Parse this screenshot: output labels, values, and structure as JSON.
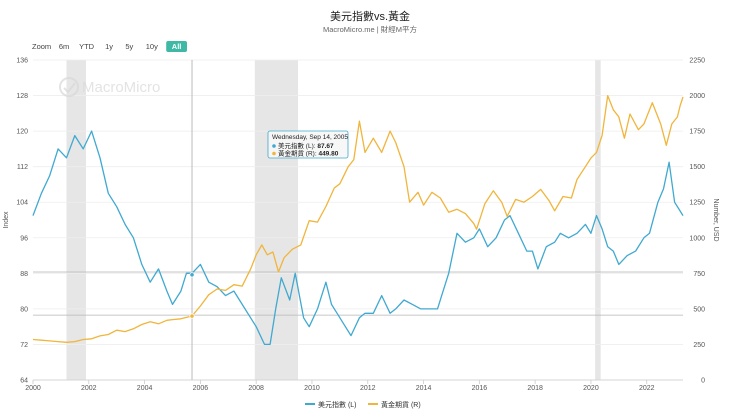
{
  "chart_data": {
    "type": "line",
    "title": "美元指數vs.黃金",
    "subtitle": "MacroMicro.me | 財經M平方",
    "watermark": "MacroMicro",
    "zoom": {
      "label": "Zoom",
      "options": [
        "6m",
        "YTD",
        "1y",
        "5y",
        "10y",
        "All"
      ],
      "selected": "All"
    },
    "x_ticks": [
      "2000",
      "2002",
      "2004",
      "2006",
      "2008",
      "2010",
      "2012",
      "2014",
      "2016",
      "2018",
      "2020",
      "2022"
    ],
    "xlim": [
      2000.0,
      2023.3
    ],
    "left_axis": {
      "label": "Index",
      "ylim": [
        64,
        136
      ],
      "ticks": [
        64,
        72,
        80,
        88,
        96,
        104,
        112,
        120,
        128,
        136
      ]
    },
    "right_axis": {
      "label": "Number, USD",
      "ylim": [
        0,
        2250
      ],
      "ticks": [
        0,
        250,
        500,
        750,
        1000,
        1250,
        1500,
        1750,
        2000,
        2250
      ]
    },
    "shaded_periods": [
      [
        2001.2,
        2001.9
      ],
      [
        2007.95,
        2009.5
      ],
      [
        2020.15,
        2020.35
      ]
    ],
    "vertical_marker": 2005.7,
    "reference_lines": [
      {
        "axis": "left",
        "value": 88.3
      },
      {
        "axis": "left",
        "value": 78.6
      }
    ],
    "series": [
      {
        "name": "美元指數",
        "axis": "left",
        "legend": "美元指數 (L)",
        "color": "#40a9d0",
        "points": [
          [
            2000.0,
            101
          ],
          [
            2000.3,
            106
          ],
          [
            2000.6,
            110
          ],
          [
            2000.9,
            116
          ],
          [
            2001.2,
            114
          ],
          [
            2001.5,
            119
          ],
          [
            2001.8,
            116
          ],
          [
            2002.1,
            120
          ],
          [
            2002.4,
            114
          ],
          [
            2002.7,
            106
          ],
          [
            2003.0,
            103
          ],
          [
            2003.3,
            99
          ],
          [
            2003.6,
            96
          ],
          [
            2003.9,
            90
          ],
          [
            2004.2,
            86
          ],
          [
            2004.5,
            89
          ],
          [
            2004.8,
            84
          ],
          [
            2005.0,
            81
          ],
          [
            2005.3,
            84
          ],
          [
            2005.5,
            88
          ],
          [
            2005.7,
            88
          ],
          [
            2006.0,
            90
          ],
          [
            2006.3,
            86
          ],
          [
            2006.6,
            85
          ],
          [
            2006.9,
            83
          ],
          [
            2007.2,
            84
          ],
          [
            2007.5,
            81
          ],
          [
            2007.8,
            78
          ],
          [
            2008.0,
            76
          ],
          [
            2008.3,
            72
          ],
          [
            2008.5,
            72
          ],
          [
            2008.7,
            80
          ],
          [
            2008.9,
            87
          ],
          [
            2009.2,
            82
          ],
          [
            2009.4,
            88
          ],
          [
            2009.7,
            78
          ],
          [
            2009.9,
            76
          ],
          [
            2010.2,
            80
          ],
          [
            2010.5,
            86
          ],
          [
            2010.7,
            81
          ],
          [
            2010.9,
            79
          ],
          [
            2011.2,
            76
          ],
          [
            2011.4,
            74
          ],
          [
            2011.7,
            78
          ],
          [
            2011.9,
            79
          ],
          [
            2012.2,
            79
          ],
          [
            2012.5,
            83
          ],
          [
            2012.8,
            79
          ],
          [
            2013.0,
            80
          ],
          [
            2013.3,
            82
          ],
          [
            2013.6,
            81
          ],
          [
            2013.9,
            80
          ],
          [
            2014.2,
            80
          ],
          [
            2014.5,
            80
          ],
          [
            2014.7,
            84
          ],
          [
            2014.9,
            88
          ],
          [
            2015.2,
            97
          ],
          [
            2015.5,
            95
          ],
          [
            2015.8,
            96
          ],
          [
            2016.0,
            98
          ],
          [
            2016.3,
            94
          ],
          [
            2016.6,
            96
          ],
          [
            2016.9,
            100
          ],
          [
            2017.1,
            101
          ],
          [
            2017.4,
            97
          ],
          [
            2017.7,
            93
          ],
          [
            2017.9,
            93
          ],
          [
            2018.1,
            89
          ],
          [
            2018.4,
            94
          ],
          [
            2018.7,
            95
          ],
          [
            2018.9,
            97
          ],
          [
            2019.2,
            96
          ],
          [
            2019.5,
            97
          ],
          [
            2019.8,
            99
          ],
          [
            2020.0,
            97
          ],
          [
            2020.2,
            101
          ],
          [
            2020.4,
            98
          ],
          [
            2020.6,
            94
          ],
          [
            2020.8,
            93
          ],
          [
            2021.0,
            90
          ],
          [
            2021.3,
            92
          ],
          [
            2021.6,
            93
          ],
          [
            2021.9,
            96
          ],
          [
            2022.1,
            97
          ],
          [
            2022.4,
            104
          ],
          [
            2022.6,
            107
          ],
          [
            2022.8,
            113
          ],
          [
            2023.0,
            104
          ],
          [
            2023.2,
            102
          ],
          [
            2023.3,
            101
          ]
        ]
      },
      {
        "name": "黃金期貨",
        "axis": "right",
        "legend": "黃金期貨 (R)",
        "color": "#f0b53c",
        "points": [
          [
            2000.0,
            285
          ],
          [
            2000.3,
            280
          ],
          [
            2000.6,
            275
          ],
          [
            2000.9,
            270
          ],
          [
            2001.2,
            265
          ],
          [
            2001.5,
            270
          ],
          [
            2001.8,
            285
          ],
          [
            2002.1,
            290
          ],
          [
            2002.4,
            310
          ],
          [
            2002.7,
            320
          ],
          [
            2003.0,
            350
          ],
          [
            2003.3,
            340
          ],
          [
            2003.6,
            360
          ],
          [
            2003.9,
            390
          ],
          [
            2004.2,
            410
          ],
          [
            2004.5,
            395
          ],
          [
            2004.8,
            420
          ],
          [
            2005.0,
            425
          ],
          [
            2005.3,
            430
          ],
          [
            2005.7,
            450
          ],
          [
            2006.0,
            520
          ],
          [
            2006.3,
            600
          ],
          [
            2006.6,
            640
          ],
          [
            2006.9,
            630
          ],
          [
            2007.2,
            670
          ],
          [
            2007.5,
            660
          ],
          [
            2007.8,
            780
          ],
          [
            2008.0,
            880
          ],
          [
            2008.2,
            950
          ],
          [
            2008.4,
            880
          ],
          [
            2008.6,
            900
          ],
          [
            2008.8,
            760
          ],
          [
            2009.0,
            860
          ],
          [
            2009.3,
            920
          ],
          [
            2009.6,
            950
          ],
          [
            2009.9,
            1120
          ],
          [
            2010.2,
            1110
          ],
          [
            2010.5,
            1220
          ],
          [
            2010.8,
            1350
          ],
          [
            2011.0,
            1380
          ],
          [
            2011.3,
            1500
          ],
          [
            2011.5,
            1550
          ],
          [
            2011.7,
            1820
          ],
          [
            2011.9,
            1600
          ],
          [
            2012.2,
            1700
          ],
          [
            2012.5,
            1600
          ],
          [
            2012.8,
            1750
          ],
          [
            2013.0,
            1670
          ],
          [
            2013.3,
            1500
          ],
          [
            2013.5,
            1250
          ],
          [
            2013.8,
            1320
          ],
          [
            2014.0,
            1230
          ],
          [
            2014.3,
            1320
          ],
          [
            2014.6,
            1280
          ],
          [
            2014.9,
            1180
          ],
          [
            2015.2,
            1200
          ],
          [
            2015.5,
            1170
          ],
          [
            2015.8,
            1100
          ],
          [
            2015.9,
            1060
          ],
          [
            2016.2,
            1240
          ],
          [
            2016.5,
            1330
          ],
          [
            2016.8,
            1250
          ],
          [
            2017.0,
            1150
          ],
          [
            2017.3,
            1270
          ],
          [
            2017.6,
            1250
          ],
          [
            2017.9,
            1290
          ],
          [
            2018.2,
            1340
          ],
          [
            2018.5,
            1260
          ],
          [
            2018.7,
            1190
          ],
          [
            2019.0,
            1290
          ],
          [
            2019.3,
            1280
          ],
          [
            2019.5,
            1410
          ],
          [
            2019.8,
            1500
          ],
          [
            2020.0,
            1560
          ],
          [
            2020.2,
            1600
          ],
          [
            2020.4,
            1720
          ],
          [
            2020.6,
            2000
          ],
          [
            2020.8,
            1900
          ],
          [
            2021.0,
            1850
          ],
          [
            2021.2,
            1700
          ],
          [
            2021.4,
            1870
          ],
          [
            2021.7,
            1760
          ],
          [
            2021.9,
            1800
          ],
          [
            2022.2,
            1950
          ],
          [
            2022.5,
            1800
          ],
          [
            2022.7,
            1650
          ],
          [
            2022.9,
            1800
          ],
          [
            2023.1,
            1850
          ],
          [
            2023.2,
            1930
          ],
          [
            2023.3,
            1990
          ]
        ]
      }
    ],
    "tooltip": {
      "date": "Wednesday, Sep 14, 2005",
      "rows": [
        {
          "label": "美元指數 (L): ",
          "value": "87.67",
          "color": "#40a9d0"
        },
        {
          "label": "黃金期貨 (R): ",
          "value": "449.80",
          "color": "#f0b53c"
        }
      ]
    }
  }
}
